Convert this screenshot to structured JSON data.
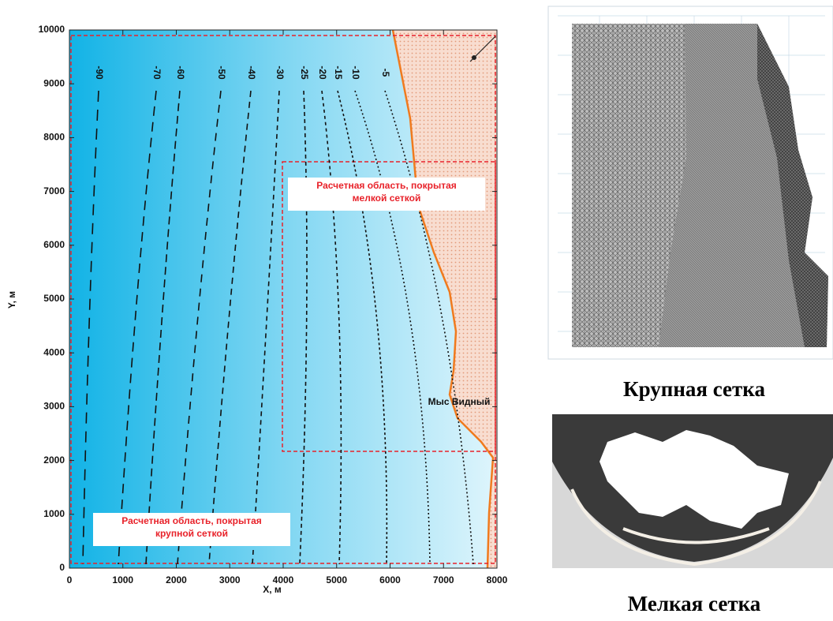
{
  "chart_data": {
    "type": "contour",
    "xlabel": "X, м",
    "ylabel": "Y, м",
    "xlim": [
      0,
      8000
    ],
    "ylim": [
      0,
      10000
    ],
    "xticks": [
      0,
      1000,
      2000,
      3000,
      4000,
      5000,
      6000,
      7000,
      8000
    ],
    "yticks": [
      0,
      1000,
      2000,
      3000,
      4000,
      5000,
      6000,
      7000,
      8000,
      9000,
      10000
    ],
    "contour_levels": [
      -90,
      -70,
      -60,
      -50,
      -40,
      -30,
      -25,
      -20,
      -15,
      -10,
      -5
    ],
    "annotations": [
      "Расчетная область, покрытая мелкой сеткой",
      "Расчетная область, покрытая крупной сеткой",
      "Мыс Видный"
    ]
  },
  "captions": [
    "Крупная сетка",
    "Мелкая сетка"
  ]
}
